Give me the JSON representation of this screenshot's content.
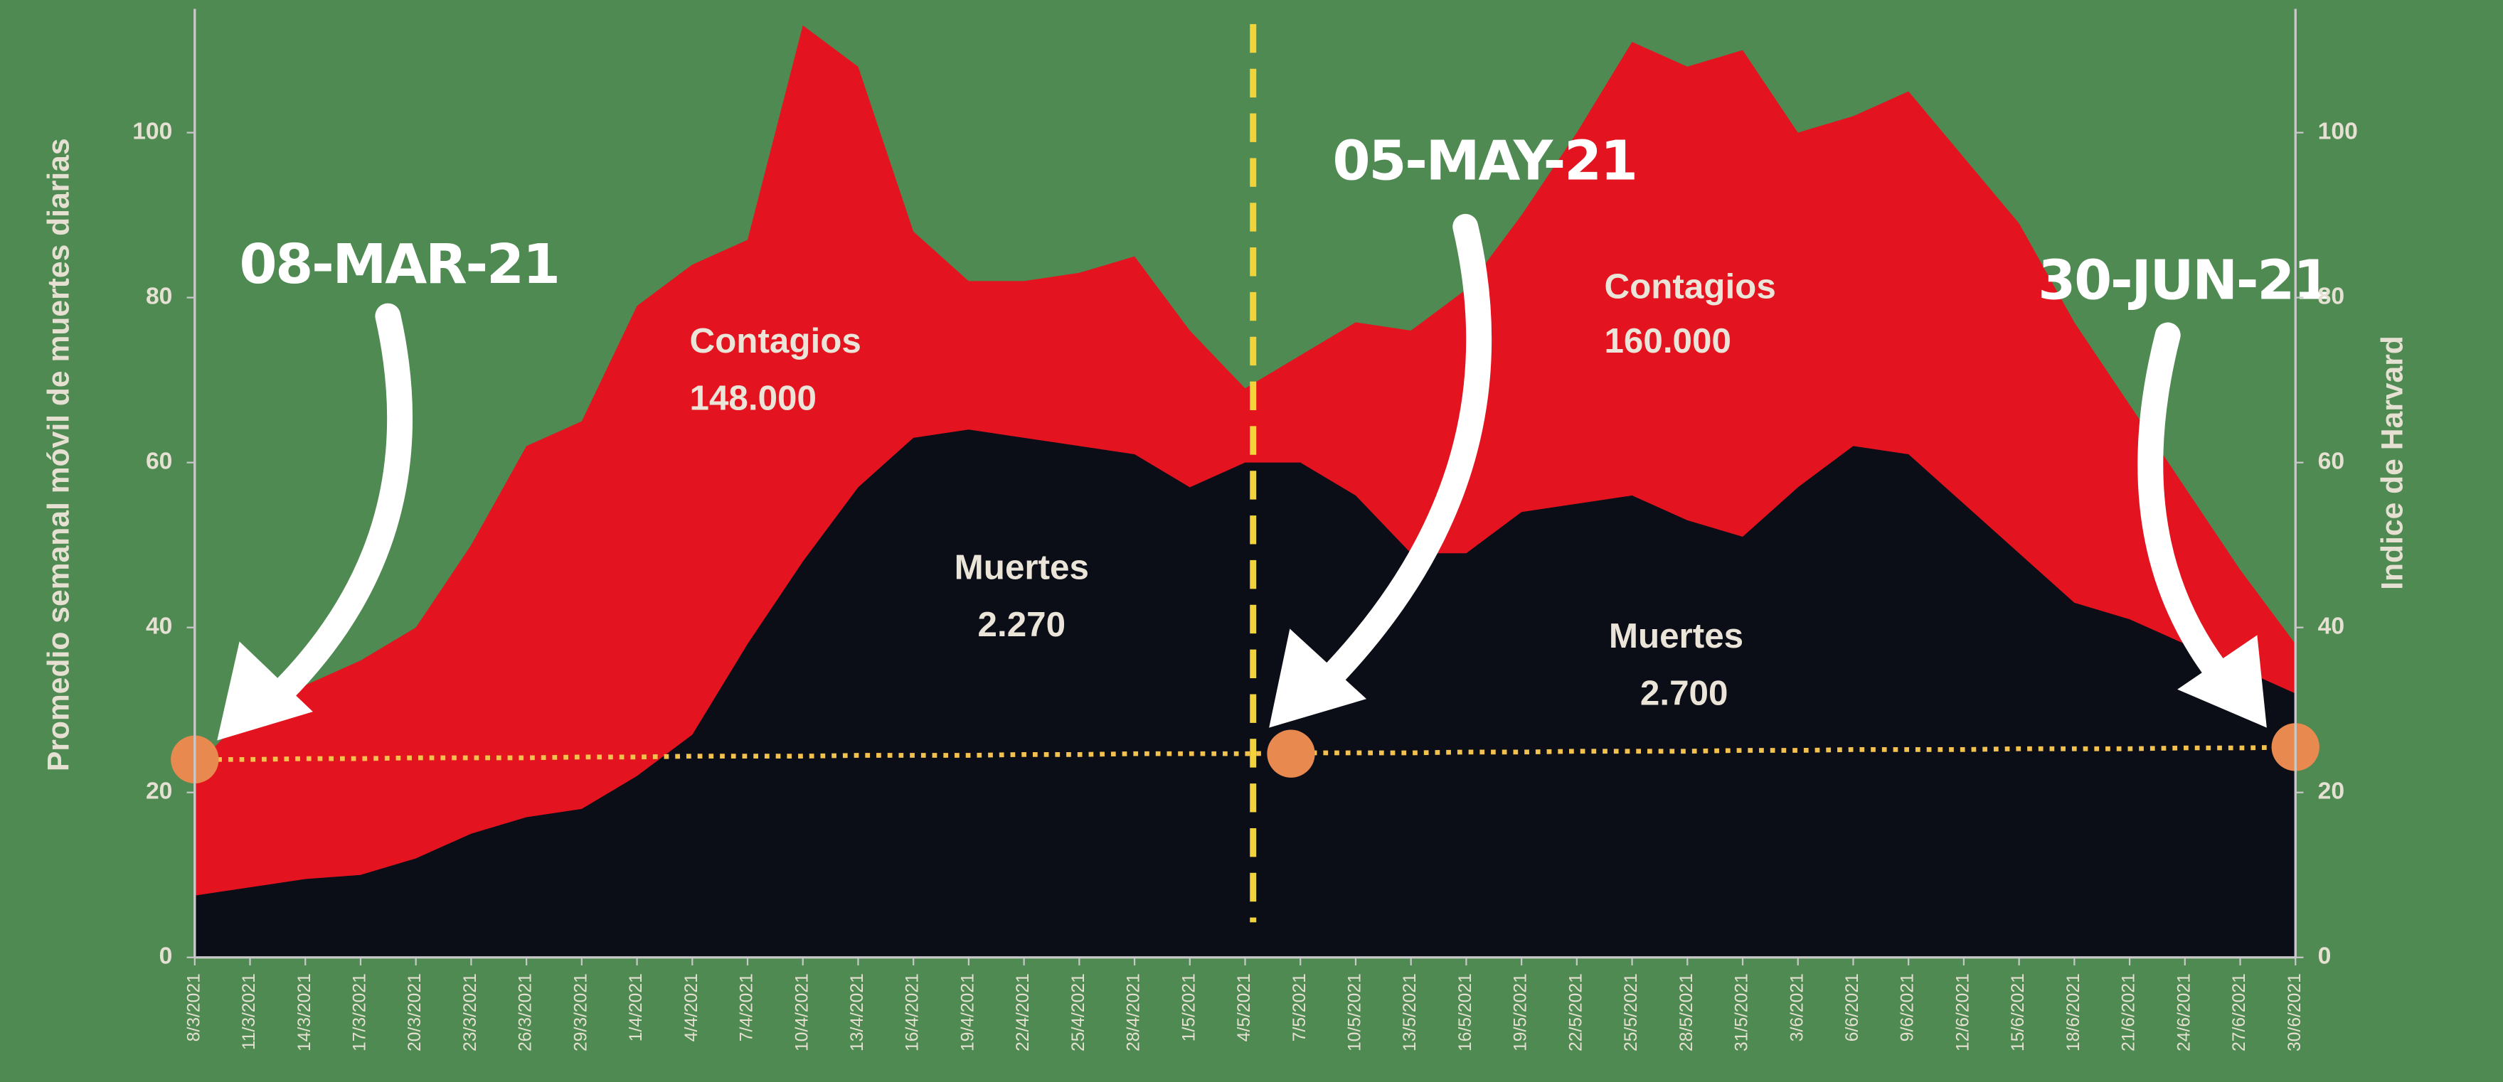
{
  "chart_data": {
    "type": "area",
    "y_label": "Promedio semanal móvil de muertes diarias",
    "y2_label": "Indice de Harvard",
    "categories": [
      "8/3/2021",
      "11/3/2021",
      "14/3/2021",
      "17/3/2021",
      "20/3/2021",
      "23/3/2021",
      "26/3/2021",
      "29/3/2021",
      "1/4/2021",
      "4/4/2021",
      "7/4/2021",
      "10/4/2021",
      "13/4/2021",
      "16/4/2021",
      "19/4/2021",
      "22/4/2021",
      "25/4/2021",
      "28/4/2021",
      "1/5/2021",
      "4/5/2021",
      "7/5/2021",
      "10/5/2021",
      "13/5/2021",
      "16/5/2021",
      "19/5/2021",
      "22/5/2021",
      "25/5/2021",
      "28/5/2021",
      "31/5/2021",
      "3/6/2021",
      "6/6/2021",
      "9/6/2021",
      "12/6/2021",
      "15/6/2021",
      "18/6/2021",
      "21/6/2021",
      "24/6/2021",
      "27/6/2021",
      "30/6/2021"
    ],
    "series": [
      {
        "name": "Contagios",
        "color": "#e3141f",
        "values": [
          23,
          30,
          33,
          36,
          40,
          50,
          62,
          65,
          79,
          84,
          87,
          113,
          108,
          88,
          82,
          82,
          83,
          85,
          76,
          69,
          73,
          77,
          76,
          81,
          90,
          100,
          111,
          108,
          110,
          100,
          102,
          105,
          97,
          89,
          77,
          67,
          57,
          47,
          38
        ]
      },
      {
        "name": "Muertes",
        "color": "#0b0d17",
        "values": [
          7.5,
          8.5,
          9.5,
          10,
          12,
          15,
          17,
          18,
          22,
          27,
          38,
          48,
          57,
          63,
          64,
          63,
          62,
          61,
          57,
          60,
          60,
          56,
          49,
          49,
          54,
          55,
          56,
          53,
          51,
          57,
          62,
          61,
          55,
          49,
          43,
          41,
          38,
          35,
          32
        ]
      },
      {
        "name": "Indice de Harvard",
        "color": "#f2c14e",
        "axis": "y2",
        "values": [
          24.0,
          24.0,
          24.1,
          24.1,
          24.2,
          24.2,
          24.2,
          24.3,
          24.3,
          24.4,
          24.4,
          24.4,
          24.5,
          24.5,
          24.5,
          24.6,
          24.6,
          24.7,
          24.7,
          24.7,
          24.8,
          24.8,
          24.8,
          24.9,
          24.9,
          25.0,
          25.0,
          25.0,
          25.1,
          25.1,
          25.2,
          25.2,
          25.2,
          25.3,
          25.3,
          25.3,
          25.4,
          25.4,
          25.5
        ]
      }
    ],
    "ylim": [
      0,
      115
    ],
    "yticks": [
      0,
      20,
      40,
      60,
      80,
      100
    ],
    "y2lim": [
      0,
      115
    ],
    "y2ticks": [
      0,
      20,
      40,
      60,
      80,
      100
    ],
    "annotations": [
      {
        "text": "08-MAR-21"
      },
      {
        "text": "05-MAY-21"
      },
      {
        "text": "30-JUN-21"
      },
      {
        "label": "Contagios",
        "value": "148.000"
      },
      {
        "label": "Contagios",
        "value": "160.000"
      },
      {
        "label": "Muertes",
        "value": "2.270"
      },
      {
        "label": "Muertes",
        "value": "2.700"
      }
    ]
  }
}
